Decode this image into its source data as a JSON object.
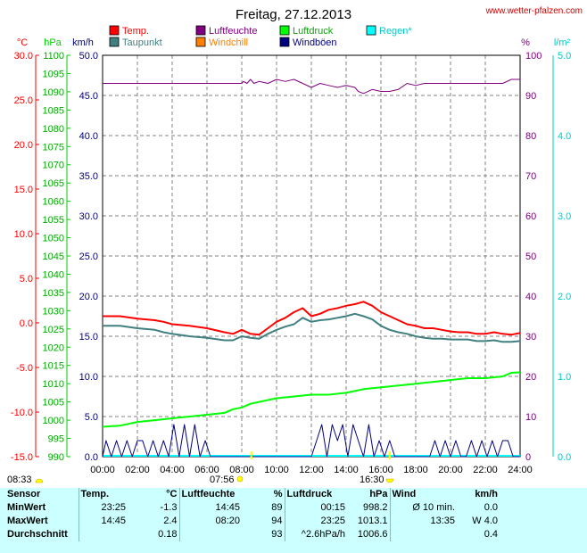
{
  "chart_data": {
    "type": "line",
    "title": "Freitag, 27.12.2013",
    "source": "www.wetter-pfalzen.com",
    "axes": {
      "celsius": {
        "label": "°C",
        "ticks": [
          "30.0",
          "25.0",
          "20.0",
          "15.0",
          "10.0",
          "5.0",
          "0.0",
          "-5.0",
          "-10.0",
          "-15.0"
        ],
        "range": [
          -15,
          30
        ],
        "color": "#ff0000"
      },
      "hpa": {
        "label": "hPa",
        "ticks": [
          "1100",
          "1095",
          "1090",
          "1085",
          "1080",
          "1075",
          "1070",
          "1065",
          "1060",
          "1055",
          "1050",
          "1045",
          "1040",
          "1035",
          "1030",
          "1025",
          "1020",
          "1015",
          "1010",
          "1005",
          "1000",
          "995",
          "990"
        ],
        "range": [
          990,
          1100
        ],
        "color": "#00cc00"
      },
      "kmh": {
        "label": "km/h",
        "ticks": [
          "50.0",
          "45.0",
          "40.0",
          "35.0",
          "30.0",
          "25.0",
          "20.0",
          "15.0",
          "10.0",
          "5.0",
          "0.0"
        ],
        "range": [
          0,
          50
        ],
        "color": "#000080"
      },
      "percent": {
        "label": "%",
        "ticks": [
          "100",
          "90",
          "80",
          "70",
          "60",
          "50",
          "40",
          "30",
          "20",
          "10",
          "0"
        ],
        "range": [
          0,
          100
        ],
        "color": "#800080"
      },
      "rain": {
        "label": "l/m²",
        "ticks": [
          "5.0",
          "4.0",
          "3.0",
          "2.0",
          "1.0",
          "0.0"
        ],
        "range": [
          0,
          5
        ],
        "color": "#00cccc"
      }
    },
    "x_ticks": [
      "00:00",
      "02:00",
      "04:00",
      "06:00",
      "08:00",
      "10:00",
      "12:00",
      "14:00",
      "16:00",
      "18:00",
      "20:00",
      "22:00",
      "24:00"
    ],
    "x_range": [
      0,
      24
    ],
    "grid": true,
    "legend": [
      {
        "label": "Temp.",
        "color": "#ff0000"
      },
      {
        "label": "Luftfeuchte",
        "color": "#800080"
      },
      {
        "label": "Luftdruck",
        "color": "#00ff00"
      },
      {
        "label": "Regen*",
        "color": "#00ffff"
      },
      {
        "label": "Taupunkt",
        "color": "#408080"
      },
      {
        "label": "Windchill",
        "color": "#ff8000"
      },
      {
        "label": "Windböen",
        "color": "#000080"
      }
    ],
    "sunrise": "08:33",
    "sunset": "16:30",
    "daylight": "07:56",
    "series": [
      {
        "name": "Temp.",
        "axis": "kmh",
        "color": "#ff0000",
        "width": 2,
        "x": [
          0,
          1,
          2,
          3,
          3.5,
          4,
          5,
          6,
          7,
          7.5,
          8,
          8.5,
          9,
          9.5,
          10,
          10.5,
          11,
          11.5,
          12,
          12.5,
          13,
          13.5,
          14,
          14.5,
          15,
          15.5,
          16,
          16.5,
          17,
          17.5,
          18,
          18.5,
          19,
          19.5,
          20,
          20.5,
          21,
          21.5,
          22,
          22.5,
          23,
          23.5,
          24
        ],
        "y": [
          17.5,
          17.5,
          17.2,
          17,
          16.8,
          16.5,
          16.3,
          16,
          15.5,
          15.3,
          15.8,
          15.3,
          15.2,
          16,
          16.8,
          17.3,
          18,
          18.5,
          17.5,
          17.8,
          18.3,
          18.5,
          18.8,
          19,
          19.3,
          18.8,
          18,
          17.5,
          17,
          16.5,
          16.3,
          16,
          16,
          15.8,
          15.6,
          15.5,
          15.5,
          15.3,
          15.3,
          15.5,
          15.3,
          15.2,
          15.4
        ]
      },
      {
        "name": "Taupunkt",
        "axis": "kmh",
        "color": "#408080",
        "width": 2,
        "x": [
          0,
          1,
          2,
          3,
          3.5,
          4,
          5,
          6,
          7,
          7.5,
          8,
          8.5,
          9,
          9.5,
          10,
          10.5,
          11,
          11.5,
          12,
          12.5,
          13,
          13.5,
          14,
          14.5,
          15,
          15.5,
          16,
          16.5,
          17,
          17.5,
          18,
          18.5,
          19,
          19.5,
          20,
          20.5,
          21,
          21.5,
          22,
          22.5,
          23,
          23.5,
          24
        ],
        "y": [
          16.3,
          16.3,
          16,
          15.8,
          15.5,
          15.3,
          15,
          14.8,
          14.5,
          14.5,
          15,
          14.8,
          14.7,
          15.3,
          15.8,
          16.2,
          16.5,
          17.3,
          16.8,
          17,
          17.1,
          17.3,
          17.5,
          17.8,
          17.5,
          17.1,
          16.3,
          15.8,
          15.5,
          15.3,
          15,
          14.8,
          14.7,
          14.7,
          14.6,
          14.6,
          14.6,
          14.4,
          14.4,
          14.5,
          14.3,
          14.3,
          14.4
        ]
      },
      {
        "name": "Luftfeuchte",
        "axis": "percent",
        "color": "#800080",
        "width": 1,
        "x": [
          0,
          8,
          8.1,
          8.3,
          8.5,
          8.7,
          9,
          9.5,
          10,
          10.5,
          11,
          11.5,
          12,
          12.5,
          13,
          13.5,
          14,
          14.5,
          14.7,
          15,
          15.5,
          16,
          16.5,
          17,
          17.5,
          18,
          18.5,
          19,
          20,
          21,
          22,
          23,
          23.5,
          24
        ],
        "y": [
          93,
          93,
          93.5,
          93,
          94,
          93,
          93.5,
          93,
          94,
          93.5,
          94,
          93,
          92,
          93,
          92.5,
          92,
          92.5,
          92,
          91,
          90.5,
          91.5,
          91,
          91,
          91.5,
          93,
          92.5,
          93,
          93,
          93,
          93,
          93,
          93,
          94,
          94
        ]
      },
      {
        "name": "Luftdruck",
        "axis": "hpa",
        "color": "#00ff00",
        "width": 2,
        "x": [
          0,
          1,
          1.5,
          2,
          3,
          4,
          5,
          6,
          7,
          7.5,
          8,
          8.5,
          9,
          10,
          11,
          12,
          13,
          14,
          14.5,
          15,
          16,
          17,
          18,
          19,
          20,
          21,
          22,
          23,
          23.5,
          24
        ],
        "y": [
          998.2,
          998.5,
          999,
          999.5,
          1000,
          1000.5,
          1001,
          1001.5,
          1002,
          1003,
          1003.5,
          1004.5,
          1005,
          1006,
          1006.5,
          1007,
          1007,
          1007.5,
          1008,
          1008.5,
          1009,
          1009.5,
          1010,
          1010.5,
          1011,
          1011.5,
          1011.5,
          1012,
          1013,
          1013.1
        ]
      },
      {
        "name": "Windböen",
        "axis": "kmh",
        "color": "#000080",
        "width": 1,
        "x": [
          0,
          0.2,
          0.5,
          0.8,
          1.1,
          1.4,
          1.7,
          2.0,
          2.3,
          2.6,
          2.9,
          3.2,
          3.5,
          3.8,
          4.1,
          4.4,
          4.7,
          5.0,
          5.3,
          5.6,
          5.9,
          6.2,
          12.0,
          12.3,
          12.6,
          12.9,
          13.2,
          13.5,
          13.8,
          14.1,
          14.4,
          14.7,
          15.0,
          15.3,
          15.6,
          15.9,
          16.2,
          16.5,
          16.8,
          18.8,
          19.1,
          19.4,
          19.7,
          20.0,
          20.3,
          20.6,
          20.9,
          21.2,
          21.5,
          21.8,
          22.1,
          22.4,
          22.7,
          23.0,
          23.3,
          23.6,
          23.9,
          24
        ],
        "y": [
          0,
          2,
          0,
          2,
          0,
          2,
          0,
          2,
          2,
          0,
          2,
          0,
          2,
          0,
          4,
          0,
          4,
          0,
          4,
          0,
          2,
          0,
          0,
          2,
          4,
          0,
          4,
          2,
          4,
          0,
          4,
          2,
          0,
          4,
          0,
          2,
          0,
          2,
          0,
          0,
          2,
          0,
          2,
          0,
          2,
          0,
          0,
          2,
          0,
          2,
          0,
          2,
          0,
          2,
          2,
          0,
          0,
          0
        ]
      }
    ]
  },
  "stats": {
    "header": {
      "sensor": "Sensor",
      "temp": "Temp.",
      "temp_unit": "°C",
      "hum": "Luftfeuchte",
      "hum_unit": "%",
      "press": "Luftdruck",
      "press_unit": "hPa",
      "wind": "Wind",
      "wind_unit": "km/h"
    },
    "rows": [
      {
        "label": "MinWert",
        "temp_time": "23:25",
        "temp_val": "-1.3",
        "hum_time": "14:45",
        "hum_val": "89",
        "press_time": "00:15",
        "press_val": "998.2",
        "wind_time": "Ø 10 min.",
        "wind_val": "0.0"
      },
      {
        "label": "MaxWert",
        "temp_time": "14:45",
        "temp_val": "2.4",
        "hum_time": "08:20",
        "hum_val": "94",
        "press_time": "23:25",
        "press_val": "1013.1",
        "wind_time": "13:35",
        "wind_val": "W 4.0"
      },
      {
        "label": "Durchschnitt",
        "temp_time": "",
        "temp_val": "0.18",
        "hum_time": "",
        "hum_val": "93",
        "press_time": "^2.6hPa/h",
        "press_val": "1006.6",
        "wind_time": "",
        "wind_val": "0.4"
      }
    ]
  }
}
